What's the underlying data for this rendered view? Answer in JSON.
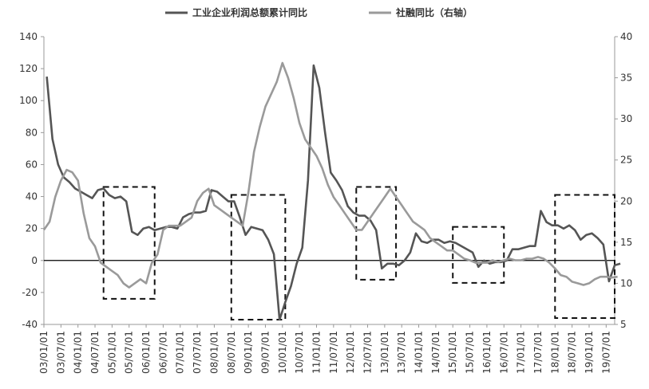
{
  "chart_data": {
    "type": "line",
    "title": "",
    "xlabel": "",
    "ylabel_left": "",
    "ylabel_right": "",
    "ylim_left": [
      -40,
      140
    ],
    "ylim_right": [
      5,
      40
    ],
    "yticks_left": [
      "-40",
      "-20",
      "0",
      "20",
      "40",
      "60",
      "80",
      "100",
      "120",
      "140"
    ],
    "yticks_right": [
      "5",
      "10",
      "15",
      "20",
      "25",
      "30",
      "35",
      "40"
    ],
    "x_tick_labels": [
      "03/01/01",
      "03/07/01",
      "04/01/01",
      "04/07/01",
      "05/01/01",
      "05/07/01",
      "06/01/01",
      "06/07/01",
      "07/01/01",
      "07/07/01",
      "08/01/01",
      "08/07/01",
      "09/01/01",
      "09/07/01",
      "10/01/01",
      "10/07/01",
      "11/01/01",
      "11/07/01",
      "12/01/01",
      "12/07/01",
      "13/01/01",
      "13/07/01",
      "14/01/01",
      "14/07/01",
      "15/01/01",
      "15/07/01",
      "16/01/01",
      "16/07/01",
      "17/01/01",
      "17/07/01",
      "18/01/01",
      "18/07/01",
      "19/01/01",
      "19/07/01"
    ],
    "x_range": [
      "2003-01",
      "2019-10"
    ],
    "grid": false,
    "legend_position": "top",
    "series": [
      {
        "name": "工业企业利润总额累计同比",
        "axis": "left",
        "color": "#555555",
        "points": [
          [
            "2003-02",
            115
          ],
          [
            "2003-04",
            76
          ],
          [
            "2003-06",
            60
          ],
          [
            "2003-08",
            52
          ],
          [
            "2003-10",
            49
          ],
          [
            "2003-12",
            45
          ],
          [
            "2004-02",
            43
          ],
          [
            "2004-04",
            41
          ],
          [
            "2004-06",
            39
          ],
          [
            "2004-08",
            44
          ],
          [
            "2004-10",
            45
          ],
          [
            "2004-12",
            41
          ],
          [
            "2005-02",
            39
          ],
          [
            "2005-04",
            40
          ],
          [
            "2005-06",
            37
          ],
          [
            "2005-08",
            18
          ],
          [
            "2005-10",
            16
          ],
          [
            "2005-12",
            20
          ],
          [
            "2006-02",
            21
          ],
          [
            "2006-04",
            19
          ],
          [
            "2006-06",
            20
          ],
          [
            "2006-08",
            21
          ],
          [
            "2006-10",
            21
          ],
          [
            "2006-12",
            20
          ],
          [
            "2007-02",
            27
          ],
          [
            "2007-04",
            29
          ],
          [
            "2007-06",
            30
          ],
          [
            "2007-08",
            30
          ],
          [
            "2007-10",
            31
          ],
          [
            "2007-12",
            44
          ],
          [
            "2008-02",
            43
          ],
          [
            "2008-04",
            40
          ],
          [
            "2008-06",
            37
          ],
          [
            "2008-08",
            37
          ],
          [
            "2008-10",
            27
          ],
          [
            "2008-12",
            16
          ],
          [
            "2009-02",
            21
          ],
          [
            "2009-04",
            20
          ],
          [
            "2009-06",
            19
          ],
          [
            "2009-08",
            13
          ],
          [
            "2009-10",
            4
          ],
          [
            "2009-12",
            -37
          ],
          [
            "2010-02",
            -26
          ],
          [
            "2010-04",
            -16
          ],
          [
            "2010-06",
            -2
          ],
          [
            "2010-08",
            8
          ],
          [
            "2010-10",
            50
          ],
          [
            "2010-12",
            122
          ],
          [
            "2011-02",
            108
          ],
          [
            "2011-04",
            80
          ],
          [
            "2011-06",
            55
          ],
          [
            "2011-08",
            50
          ],
          [
            "2011-10",
            44
          ],
          [
            "2011-12",
            34
          ],
          [
            "2012-02",
            30
          ],
          [
            "2012-04",
            28
          ],
          [
            "2012-06",
            28
          ],
          [
            "2012-08",
            25
          ],
          [
            "2012-10",
            19
          ],
          [
            "2012-12",
            -5
          ],
          [
            "2013-02",
            -2
          ],
          [
            "2013-04",
            -2
          ],
          [
            "2013-06",
            -3
          ],
          [
            "2013-08",
            0
          ],
          [
            "2013-10",
            5
          ],
          [
            "2013-12",
            17
          ],
          [
            "2014-02",
            12
          ],
          [
            "2014-04",
            11
          ],
          [
            "2014-06",
            13
          ],
          [
            "2014-08",
            13
          ],
          [
            "2014-10",
            11
          ],
          [
            "2014-12",
            12
          ],
          [
            "2015-02",
            11
          ],
          [
            "2015-04",
            9
          ],
          [
            "2015-06",
            7
          ],
          [
            "2015-08",
            5
          ],
          [
            "2015-10",
            -4
          ],
          [
            "2015-12",
            0
          ],
          [
            "2016-02",
            -2
          ],
          [
            "2016-04",
            -1
          ],
          [
            "2016-06",
            -1
          ],
          [
            "2016-08",
            0
          ],
          [
            "2016-10",
            7
          ],
          [
            "2016-12",
            7
          ],
          [
            "2017-02",
            8
          ],
          [
            "2017-04",
            9
          ],
          [
            "2017-06",
            9
          ],
          [
            "2017-08",
            31
          ],
          [
            "2017-10",
            24
          ],
          [
            "2017-12",
            22
          ],
          [
            "2018-02",
            22
          ],
          [
            "2018-04",
            20
          ],
          [
            "2018-06",
            22
          ],
          [
            "2018-08",
            19
          ],
          [
            "2018-10",
            13
          ],
          [
            "2018-12",
            16
          ],
          [
            "2019-02",
            17
          ],
          [
            "2019-04",
            14
          ],
          [
            "2019-06",
            10
          ],
          [
            "2019-08",
            -13
          ],
          [
            "2019-10",
            -3
          ],
          [
            "2019-12",
            -2
          ]
        ]
      },
      {
        "name": "社融同比（右轴）",
        "axis": "right",
        "color": "#9a9a9a",
        "points": [
          [
            "2003-01",
            16.5
          ],
          [
            "2003-03",
            17.5
          ],
          [
            "2003-05",
            20.5
          ],
          [
            "2003-07",
            22.5
          ],
          [
            "2003-09",
            23.8
          ],
          [
            "2003-11",
            23.5
          ],
          [
            "2004-01",
            22.5
          ],
          [
            "2004-03",
            18.5
          ],
          [
            "2004-05",
            15.5
          ],
          [
            "2004-07",
            14.5
          ],
          [
            "2004-09",
            12.5
          ],
          [
            "2004-11",
            12.0
          ],
          [
            "2005-01",
            11.5
          ],
          [
            "2005-03",
            11.0
          ],
          [
            "2005-05",
            10.0
          ],
          [
            "2005-07",
            9.5
          ],
          [
            "2005-09",
            10.0
          ],
          [
            "2005-11",
            10.5
          ],
          [
            "2006-01",
            10.0
          ],
          [
            "2006-03",
            12.5
          ],
          [
            "2006-05",
            13.5
          ],
          [
            "2006-07",
            16.5
          ],
          [
            "2006-09",
            17.0
          ],
          [
            "2006-11",
            17.0
          ],
          [
            "2007-01",
            17.0
          ],
          [
            "2007-03",
            17.5
          ],
          [
            "2007-05",
            18.0
          ],
          [
            "2007-07",
            20.0
          ],
          [
            "2007-09",
            21.0
          ],
          [
            "2007-11",
            21.5
          ],
          [
            "2008-01",
            19.5
          ],
          [
            "2008-03",
            19.0
          ],
          [
            "2008-05",
            18.5
          ],
          [
            "2008-07",
            18.0
          ],
          [
            "2008-09",
            17.5
          ],
          [
            "2008-11",
            17.0
          ],
          [
            "2009-01",
            21.0
          ],
          [
            "2009-03",
            26.0
          ],
          [
            "2009-05",
            29.0
          ],
          [
            "2009-07",
            31.5
          ],
          [
            "2009-09",
            33.0
          ],
          [
            "2009-11",
            34.5
          ],
          [
            "2010-01",
            36.8
          ],
          [
            "2010-03",
            35.0
          ],
          [
            "2010-05",
            32.5
          ],
          [
            "2010-07",
            29.5
          ],
          [
            "2010-09",
            27.5
          ],
          [
            "2010-11",
            26.5
          ],
          [
            "2011-01",
            25.5
          ],
          [
            "2011-03",
            24.0
          ],
          [
            "2011-05",
            22.0
          ],
          [
            "2011-07",
            20.5
          ],
          [
            "2011-09",
            19.5
          ],
          [
            "2011-11",
            18.5
          ],
          [
            "2012-01",
            17.5
          ],
          [
            "2012-03",
            16.5
          ],
          [
            "2012-05",
            16.5
          ],
          [
            "2012-07",
            17.5
          ],
          [
            "2012-09",
            18.5
          ],
          [
            "2012-11",
            19.5
          ],
          [
            "2013-01",
            20.5
          ],
          [
            "2013-03",
            21.5
          ],
          [
            "2013-05",
            20.5
          ],
          [
            "2013-07",
            19.5
          ],
          [
            "2013-09",
            18.5
          ],
          [
            "2013-11",
            17.5
          ],
          [
            "2014-01",
            17.0
          ],
          [
            "2014-03",
            16.5
          ],
          [
            "2014-05",
            15.5
          ],
          [
            "2014-07",
            15.0
          ],
          [
            "2014-09",
            14.5
          ],
          [
            "2014-11",
            14.0
          ],
          [
            "2015-01",
            14.0
          ],
          [
            "2015-03",
            13.5
          ],
          [
            "2015-05",
            13.0
          ],
          [
            "2015-07",
            12.8
          ],
          [
            "2015-09",
            12.5
          ],
          [
            "2015-11",
            12.5
          ],
          [
            "2016-01",
            12.5
          ],
          [
            "2016-03",
            12.8
          ],
          [
            "2016-05",
            12.6
          ],
          [
            "2016-07",
            12.8
          ],
          [
            "2016-09",
            13.0
          ],
          [
            "2016-11",
            12.8
          ],
          [
            "2017-01",
            12.8
          ],
          [
            "2017-03",
            13.0
          ],
          [
            "2017-05",
            13.0
          ],
          [
            "2017-07",
            13.2
          ],
          [
            "2017-09",
            13.0
          ],
          [
            "2017-11",
            12.5
          ],
          [
            "2018-01",
            11.8
          ],
          [
            "2018-03",
            11.0
          ],
          [
            "2018-05",
            10.8
          ],
          [
            "2018-07",
            10.2
          ],
          [
            "2018-09",
            10.0
          ],
          [
            "2018-11",
            9.8
          ],
          [
            "2019-01",
            10.0
          ],
          [
            "2019-03",
            10.5
          ],
          [
            "2019-05",
            10.8
          ],
          [
            "2019-07",
            10.8
          ],
          [
            "2019-09",
            10.7
          ],
          [
            "2019-11",
            10.8
          ]
        ]
      }
    ],
    "highlight_boxes": [
      {
        "start": "2004-10",
        "end": "2006-04",
        "y_top": 46,
        "y_bottom": -24
      },
      {
        "start": "2008-07",
        "end": "2010-02",
        "y_top": 41,
        "y_bottom": -37
      },
      {
        "start": "2012-03",
        "end": "2013-05",
        "y_top": 46,
        "y_bottom": -12
      },
      {
        "start": "2015-01",
        "end": "2016-07",
        "y_top": 21,
        "y_bottom": -14
      },
      {
        "start": "2018-01",
        "end": "2019-10",
        "y_top": 41,
        "y_bottom": -36
      }
    ]
  }
}
